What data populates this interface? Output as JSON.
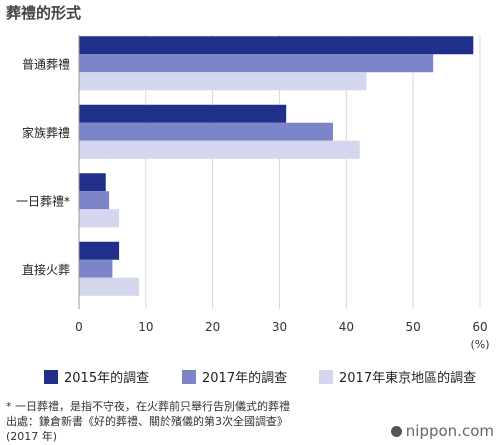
{
  "chart_data": {
    "type": "bar",
    "orientation": "horizontal",
    "title": "葬禮的形式",
    "categories": [
      "普通葬禮",
      "家族葬禮",
      "一日葬禮*",
      "直接火葬"
    ],
    "series": [
      {
        "name": "2015年的調查",
        "color": "#1f2f8a",
        "values": [
          59,
          31,
          4,
          6
        ]
      },
      {
        "name": "2017年的調查",
        "color": "#7b85c8",
        "values": [
          53,
          38,
          4.5,
          5
        ]
      },
      {
        "name": "2017年東京地區的調查",
        "color": "#d3d6ec",
        "values": [
          43,
          42,
          6,
          9
        ]
      }
    ],
    "x_ticks": [
      0,
      10,
      20,
      30,
      40,
      50,
      60
    ],
    "xlim": [
      0,
      60
    ],
    "x_unit": "(%)",
    "grid": true,
    "legend_position": "bottom"
  },
  "notes": {
    "footnote": "* 一日葬禮，是指不守夜，在火葬前只舉行告別儀式的葬禮",
    "source": "出處：鎌倉新書《好的葬禮、關於殯儀的第3次全國調查》",
    "source_year": "(2017 年)"
  },
  "credit": "nippon.com"
}
